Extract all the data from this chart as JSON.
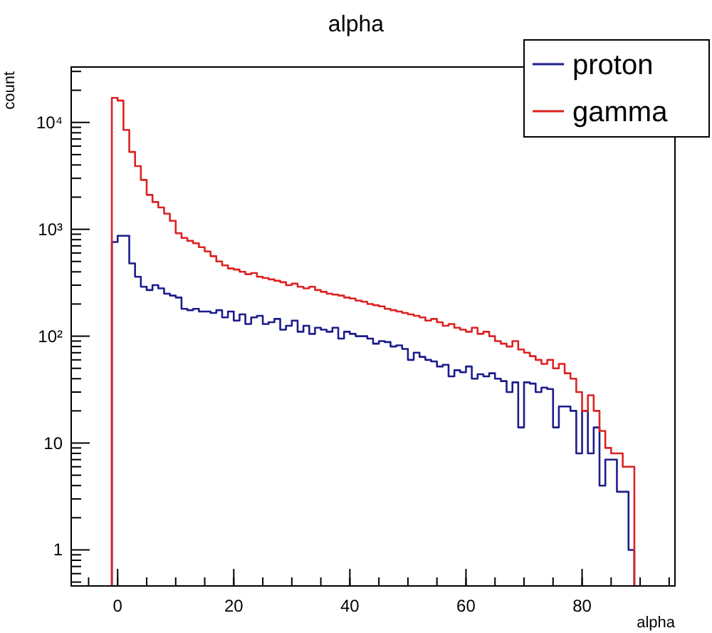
{
  "chart_data": {
    "type": "histogram",
    "title": "alpha",
    "xlabel": "alpha",
    "ylabel": "count",
    "log": "y",
    "legend": "top right",
    "grid": false,
    "bins": [
      -1,
      0,
      1,
      2,
      3,
      4,
      5,
      6,
      7,
      8,
      9,
      10,
      11,
      12,
      13,
      14,
      15,
      16,
      17,
      18,
      19,
      20,
      21,
      22,
      23,
      24,
      25,
      26,
      27,
      28,
      29,
      30,
      31,
      32,
      33,
      34,
      35,
      36,
      37,
      38,
      39,
      40,
      41,
      42,
      43,
      44,
      45,
      46,
      47,
      48,
      49,
      50,
      51,
      52,
      53,
      54,
      55,
      56,
      57,
      58,
      59,
      60,
      61,
      62,
      63,
      64,
      65,
      66,
      67,
      68,
      69,
      70,
      71,
      72,
      73,
      74,
      75,
      76,
      77,
      78,
      79,
      80,
      81,
      82,
      83,
      84,
      85,
      86,
      87,
      88,
      89
    ],
    "xlim": [
      -8,
      96
    ],
    "xticks": [
      0,
      20,
      40,
      60,
      80
    ],
    "ylim": [
      0.46,
      33000
    ],
    "yticks": [
      1,
      10,
      {
        "value": 100,
        "label": "10²"
      },
      {
        "value": 1000,
        "label": "10³"
      },
      {
        "value": 10000,
        "label": "10⁴"
      }
    ],
    "series": [
      {
        "name": "proton",
        "color": "#1c1c8c",
        "values": [
          760,
          870,
          870,
          480,
          360,
          290,
          270,
          300,
          280,
          250,
          240,
          230,
          180,
          175,
          180,
          170,
          170,
          165,
          175,
          150,
          170,
          140,
          160,
          130,
          150,
          155,
          130,
          135,
          145,
          115,
          125,
          140,
          110,
          125,
          105,
          120,
          115,
          110,
          120,
          95,
          110,
          105,
          100,
          100,
          95,
          85,
          90,
          88,
          80,
          82,
          76,
          60,
          70,
          64,
          60,
          58,
          52,
          54,
          42,
          48,
          46,
          52,
          40,
          44,
          42,
          45,
          40,
          38,
          30,
          37,
          14,
          37,
          36,
          30,
          33,
          32,
          14,
          22,
          22,
          20,
          8,
          20,
          8,
          14,
          4,
          7,
          7,
          3.5,
          3.5,
          1
        ]
      },
      {
        "name": "gamma",
        "color": "#dd2222",
        "values": [
          17000,
          16000,
          8500,
          5300,
          3900,
          2900,
          2100,
          1800,
          1600,
          1400,
          1200,
          920,
          830,
          780,
          740,
          680,
          620,
          560,
          500,
          460,
          430,
          420,
          400,
          380,
          390,
          360,
          350,
          340,
          330,
          320,
          300,
          310,
          290,
          280,
          290,
          270,
          260,
          250,
          245,
          240,
          230,
          225,
          215,
          210,
          200,
          195,
          190,
          180,
          175,
          170,
          165,
          160,
          155,
          150,
          140,
          145,
          135,
          125,
          130,
          120,
          115,
          110,
          120,
          105,
          110,
          100,
          90,
          85,
          80,
          90,
          75,
          70,
          65,
          60,
          55,
          60,
          50,
          55,
          45,
          40,
          30,
          20,
          28,
          20,
          13,
          9,
          8,
          8,
          6,
          6
        ]
      }
    ]
  }
}
